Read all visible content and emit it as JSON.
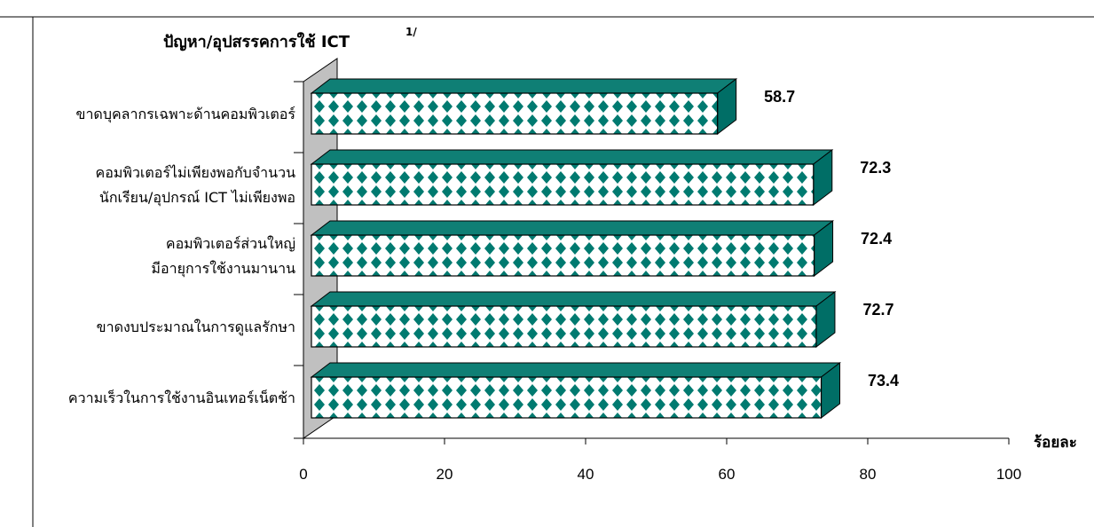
{
  "chart_data": {
    "type": "bar",
    "orientation": "horizontal",
    "title": "ปัญหา/อุปสรรคการใช้ ICT",
    "title_superscript": "1/",
    "xlabel": "ร้อยละ",
    "xlim": [
      0,
      100
    ],
    "x_ticks": [
      "0",
      "20",
      "40",
      "60",
      "80",
      "100"
    ],
    "categories": [
      [
        "ขาดบุคลากรเฉพาะด้านคอมพิวเตอร์"
      ],
      [
        "คอมพิวเตอร์ไม่เพียงพอกับจำนวน",
        "นักเรียน/อุปกรณ์ ICT  ไม่เพียงพอ"
      ],
      [
        "คอมพิวเตอร์ส่วนใหญ่",
        "มีอายุการใช้งานมานาน"
      ],
      [
        "ขาดงบประมาณในการดูแลรักษา"
      ],
      [
        "ความเร็วในการใช้งานอินเทอร์เน็ตช้า"
      ]
    ],
    "values": [
      58.7,
      72.3,
      72.4,
      72.7,
      73.4
    ],
    "value_labels": [
      "58.7",
      "72.3",
      "72.4",
      "72.7",
      "73.4"
    ],
    "grid": false,
    "legend": "none",
    "colors": {
      "bar_pattern_fg": "#007a70",
      "bar_pattern_bg": "#ffffff",
      "bar_top": "#0f7f75",
      "bar_side": "#006e66",
      "wall": "#c0c0c0"
    }
  }
}
